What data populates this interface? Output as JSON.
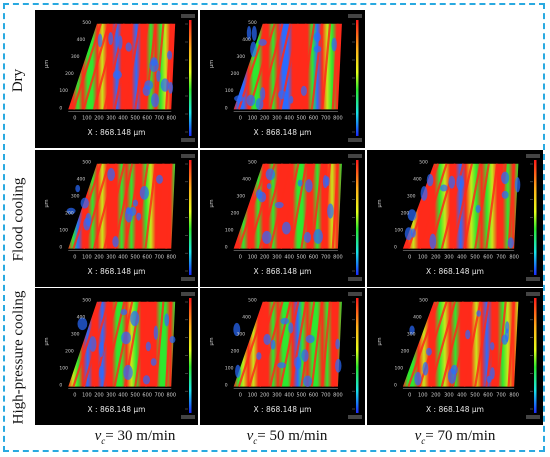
{
  "row_labels": [
    "Dry",
    "Flood cooling",
    "High-pressure  cooling"
  ],
  "column_labels": [
    {
      "v": "v",
      "sub": "c",
      "text": "= 30 m/min"
    },
    {
      "v": "v",
      "sub": "c",
      "text": "= 50 m/min"
    },
    {
      "v": "v",
      "sub": "c",
      "text": "= 70 m/min"
    }
  ],
  "x_axis_caption": "X : 868.148 µm",
  "x_ticks": [
    "0",
    "100",
    "200",
    "300",
    "400",
    "500",
    "600",
    "700",
    "800"
  ],
  "y_ticks": [
    "0",
    "100",
    "200",
    "300",
    "400",
    "500"
  ],
  "y_axis_unit": "µm",
  "panels": [
    {
      "row": 0,
      "col": 0,
      "present": true
    },
    {
      "row": 0,
      "col": 1,
      "present": true
    },
    {
      "row": 0,
      "col": 2,
      "present": false
    },
    {
      "row": 1,
      "col": 0,
      "present": true
    },
    {
      "row": 1,
      "col": 1,
      "present": true
    },
    {
      "row": 1,
      "col": 2,
      "present": true
    },
    {
      "row": 2,
      "col": 0,
      "present": true
    },
    {
      "row": 2,
      "col": 1,
      "present": true
    },
    {
      "row": 2,
      "col": 2,
      "present": true
    }
  ],
  "colors": {
    "frame_border": "#29a9e0",
    "panel_bg": "#000000",
    "surface_ridge": "#ff2a1a",
    "surface_mid": "#2ee82e",
    "surface_low": "#2a6bff",
    "axis_text": "#cfcfcf"
  }
}
